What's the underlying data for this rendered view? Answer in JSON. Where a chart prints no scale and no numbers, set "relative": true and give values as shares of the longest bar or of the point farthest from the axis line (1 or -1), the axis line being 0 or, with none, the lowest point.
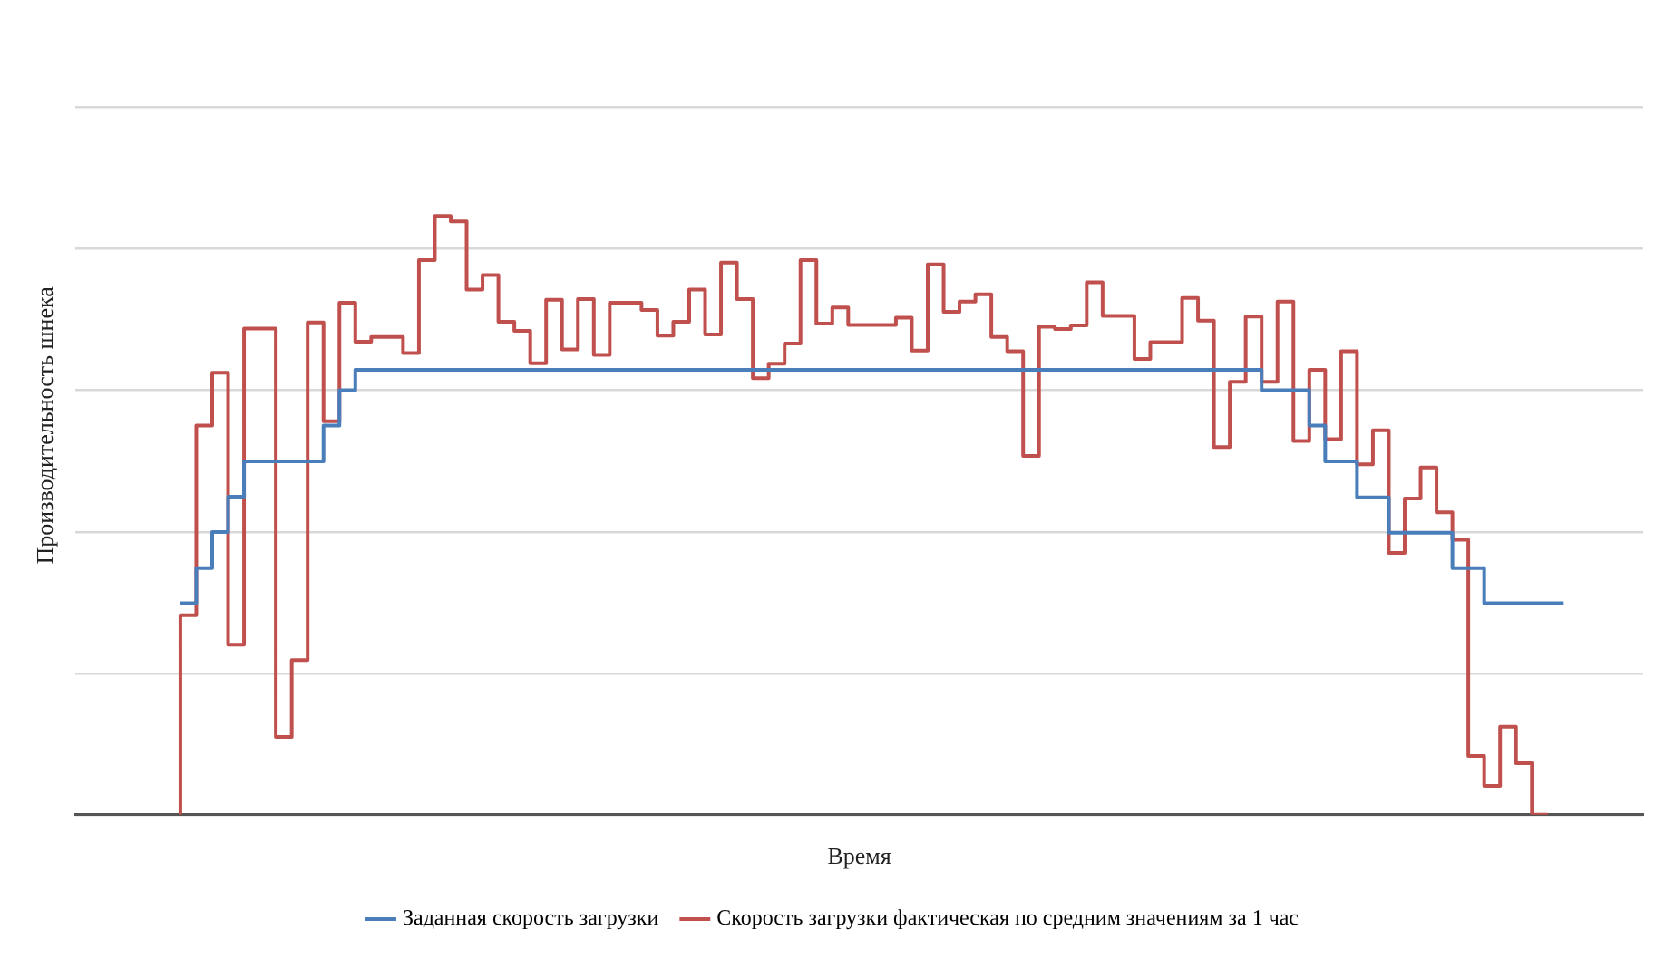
{
  "chart_data": {
    "type": "step",
    "xlabel": "Время",
    "ylabel": "Производительность шнека",
    "relative": true,
    "grid": "y",
    "legend": "bottom",
    "marker": "none",
    "categories": [
      null,
      null,
      null,
      null,
      null,
      null,
      null,
      null,
      null,
      null,
      null,
      null,
      null,
      null,
      null,
      null,
      null,
      null,
      null,
      null,
      null,
      null,
      null,
      null,
      null,
      null,
      null,
      null,
      null,
      null,
      null,
      null,
      null,
      null,
      null,
      null,
      null,
      null,
      null,
      null,
      null,
      null,
      null,
      null,
      null,
      null,
      null,
      null,
      null,
      null,
      null,
      null,
      null,
      null,
      null,
      null,
      null,
      null,
      null,
      null,
      null,
      null,
      null,
      null,
      null,
      null,
      null,
      null,
      null,
      null,
      null,
      null,
      null,
      null,
      null,
      null,
      null,
      null,
      null,
      null,
      null,
      null,
      null,
      null,
      null,
      null,
      null,
      null
    ],
    "series": [
      {
        "name": "Заданная скорость загрузки",
        "color": "#4a7ebb",
        "values": [
          0.353,
          0.353,
          0.412,
          0.472,
          0.531,
          0.59,
          0.59,
          0.59,
          0.59,
          0.59,
          0.65,
          0.709,
          0.743,
          0.743,
          0.743,
          0.743,
          0.743,
          0.743,
          0.743,
          0.743,
          0.743,
          0.743,
          0.743,
          0.743,
          0.743,
          0.743,
          0.743,
          0.743,
          0.743,
          0.743,
          0.743,
          0.743,
          0.743,
          0.743,
          0.743,
          0.743,
          0.743,
          0.743,
          0.743,
          0.743,
          0.743,
          0.743,
          0.743,
          0.743,
          0.743,
          0.743,
          0.743,
          0.743,
          0.743,
          0.743,
          0.743,
          0.743,
          0.743,
          0.743,
          0.743,
          0.743,
          0.743,
          0.743,
          0.743,
          0.743,
          0.743,
          0.743,
          0.743,
          0.743,
          0.743,
          0.743,
          0.743,
          0.743,
          0.743,
          0.709,
          0.709,
          0.709,
          0.65,
          0.59,
          0.59,
          0.53,
          0.53,
          0.471,
          0.471,
          0.471,
          0.471,
          0.412,
          0.412,
          0.353,
          0.353,
          0.353,
          0.353,
          0.353
        ]
      },
      {
        "name": "Скорость загрузки фактическая по средним значениям за 1 час",
        "color": "#c0504d",
        "values": [
          0,
          0.333,
          0.65,
          0.738,
          0.284,
          0.812,
          0.812,
          0.13,
          0.258,
          0.822,
          0.657,
          0.855,
          0.79,
          0.798,
          0.798,
          0.771,
          0.926,
          1.0,
          0.991,
          0.877,
          0.901,
          0.823,
          0.808,
          0.754,
          0.86,
          0.777,
          0.861,
          0.768,
          0.855,
          0.855,
          0.843,
          0.8,
          0.823,
          0.877,
          0.802,
          0.922,
          0.861,
          0.729,
          0.753,
          0.787,
          0.926,
          0.82,
          0.847,
          0.818,
          0.818,
          0.818,
          0.83,
          0.775,
          0.919,
          0.84,
          0.857,
          0.869,
          0.798,
          0.774,
          0.599,
          0.815,
          0.811,
          0.817,
          0.889,
          0.833,
          0.833,
          0.761,
          0.789,
          0.789,
          0.863,
          0.825,
          0.614,
          0.723,
          0.832,
          0.723,
          0.857,
          0.624,
          0.743,
          0.627,
          0.774,
          0.585,
          0.642,
          0.437,
          0.528,
          0.58,
          0.505,
          0.459,
          0.098,
          0.048,
          0.147,
          0.086,
          0,
          null
        ]
      }
    ]
  }
}
